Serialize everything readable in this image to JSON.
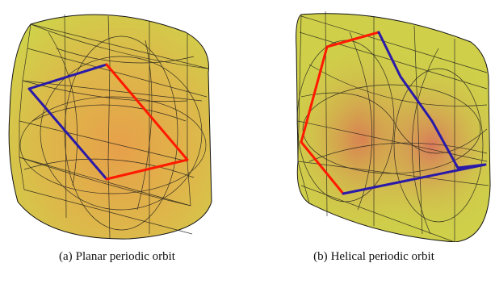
{
  "figure": {
    "panels": [
      {
        "label": "(a)",
        "caption": "Planar periodic orbit"
      },
      {
        "label": "(b)",
        "caption": "Helical periodic orbit"
      }
    ],
    "colors": {
      "surface_fill": "#d6c94a",
      "surface_shade": "#d9824a",
      "mesh_line": "#1a1a1a",
      "orbit_red": "#ff1a00",
      "orbit_blue": "#2a1aa8"
    }
  }
}
